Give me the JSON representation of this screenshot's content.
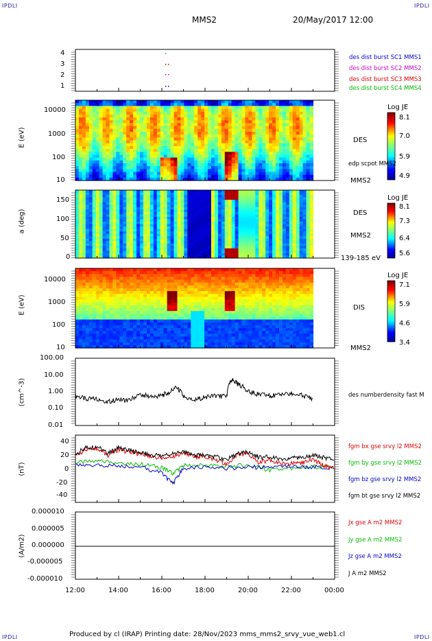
{
  "corner_label": "IPDLI",
  "header": {
    "spacecraft": "MMS2",
    "datetime": "20/May/2017 12:00"
  },
  "footer": {
    "text": "Produced by cl (IRAP)   Printing date: 28/Nov/2023   mms_mms2_srvy_vue_web1.cl"
  },
  "colors": {
    "blue": "#0000cc",
    "magenta": "#cc00cc",
    "red": "#dd0000",
    "green": "#00bb00",
    "black": "#000000"
  },
  "x_axis": {
    "ticks": [
      "12:00",
      "14:00",
      "16:00",
      "18:00",
      "20:00",
      "22:00",
      "00:00"
    ]
  },
  "panels": {
    "burst": {
      "yticks": [
        "4",
        "3",
        "2",
        "1"
      ],
      "legend": [
        {
          "text": "des dist burst SC1 MMS1",
          "color": "#0000cc"
        },
        {
          "text": "des dist burst SC2 MMS2",
          "color": "#cc00cc"
        },
        {
          "text": "des dist burst SC3 MMS3",
          "color": "#dd0000"
        },
        {
          "text": "des dist burst SC4 MMS4",
          "color": "#00bb00"
        }
      ]
    },
    "des_energy": {
      "ylabel": "E (eV)",
      "yticks": [
        "10000",
        "1000",
        "100",
        "10"
      ],
      "right_label": "DES",
      "overlay_label": "edp scpot MMS2",
      "bottom_label": "MMS2",
      "colorbar": {
        "title": "Log JE",
        "ticks": [
          "8.1",
          "7.0",
          "5.9",
          "4.9"
        ]
      }
    },
    "des_pitch": {
      "ylabel": "a (deg)",
      "yticks": [
        "150",
        "100",
        "50",
        "0"
      ],
      "right_label": "DES",
      "right_label2": "MMS2",
      "bottom_label": "139-185 eV",
      "colorbar": {
        "title": "Log JE",
        "ticks": [
          "8.1",
          "7.3",
          "6.4",
          "5.6"
        ]
      }
    },
    "dis_energy": {
      "ylabel": "E (eV)",
      "yticks": [
        "10000",
        "1000",
        "100",
        "10"
      ],
      "right_label": "DIS",
      "bottom_label": "MMS2",
      "colorbar": {
        "title": "Log JE",
        "ticks": [
          "7.1",
          "5.9",
          "4.6",
          "3.4"
        ]
      }
    },
    "density": {
      "ylabel": "(cm^-3)",
      "yticks": [
        "100.00",
        "10.00",
        "1.00",
        "0.10",
        "0.01"
      ],
      "legend": "des numberdensity fast M"
    },
    "bfield": {
      "ylabel": "(nT)",
      "yticks": [
        "40",
        "20",
        "0",
        "-20",
        "-40"
      ],
      "legend": [
        {
          "text": "fgm bx gse srvy l2 MMS2",
          "color": "#dd0000"
        },
        {
          "text": "fgm by gse srvy l2 MMS2",
          "color": "#00bb00"
        },
        {
          "text": "fgm bz gse srvy l2 MMS2",
          "color": "#0000cc"
        },
        {
          "text": "fgm bt gse srvy l2 MMS2",
          "color": "#000000"
        }
      ]
    },
    "current": {
      "ylabel": "(A/m2)",
      "yticks": [
        "0.000010",
        "0.000005",
        "0.000000",
        "-0.000005",
        "-0.000010"
      ],
      "legend": [
        {
          "text": "Jx gse A m2 MMS2",
          "color": "#dd0000"
        },
        {
          "text": "Jy gse A m2 MMS2",
          "color": "#00bb00"
        },
        {
          "text": "Jz gse A m2 MMS2",
          "color": "#0000cc"
        },
        {
          "text": "J A m2 MMS2",
          "color": "#000000"
        }
      ]
    }
  },
  "chart_data": {
    "type": "line",
    "x_range": [
      "12:00",
      "00:00"
    ],
    "data_end": "23:00",
    "series": [
      {
        "name": "des numberdensity fast M",
        "x": [
          "12:00",
          "12:30",
          "13:00",
          "13:30",
          "14:00",
          "14:30",
          "15:00",
          "15:30",
          "16:00",
          "16:20",
          "16:40",
          "17:00",
          "17:30",
          "18:00",
          "18:30",
          "19:00",
          "19:15",
          "19:30",
          "20:00",
          "20:30",
          "21:00",
          "21:30",
          "22:00",
          "22:30",
          "23:00"
        ],
        "y": [
          0.6,
          0.35,
          0.4,
          0.25,
          0.35,
          0.3,
          0.7,
          0.5,
          0.6,
          0.9,
          1.8,
          0.5,
          0.3,
          0.5,
          0.6,
          0.5,
          5.0,
          3.0,
          1.0,
          0.7,
          0.6,
          0.6,
          0.8,
          0.6,
          0.4
        ]
      },
      {
        "name": "fgm bt gse srvy l2 MMS2",
        "x": [
          "12:00",
          "12:30",
          "13:00",
          "13:30",
          "14:00",
          "14:30",
          "15:00",
          "15:30",
          "16:00",
          "16:30",
          "17:00",
          "17:30",
          "18:00",
          "18:30",
          "19:00",
          "19:30",
          "20:00",
          "20:30",
          "21:00",
          "21:30",
          "22:00",
          "22:30",
          "23:00",
          "23:30",
          "00:00"
        ],
        "y": [
          20,
          28,
          30,
          20,
          28,
          24,
          22,
          18,
          18,
          20,
          22,
          18,
          18,
          16,
          12,
          20,
          22,
          15,
          16,
          12,
          16,
          14,
          18,
          15,
          12
        ]
      },
      {
        "name": "fgm bx gse srvy l2 MMS2",
        "x": [
          "12:00",
          "12:30",
          "13:00",
          "13:30",
          "14:00",
          "14:30",
          "15:00",
          "15:30",
          "16:00",
          "16:30",
          "17:00",
          "17:30",
          "18:00",
          "18:30",
          "19:00",
          "19:30",
          "20:00",
          "20:30",
          "21:00",
          "21:30",
          "22:00",
          "22:30",
          "23:00",
          "23:30",
          "00:00"
        ],
        "y": [
          18,
          26,
          28,
          18,
          26,
          22,
          20,
          16,
          14,
          16,
          20,
          16,
          16,
          12,
          6,
          18,
          20,
          8,
          12,
          6,
          8,
          8,
          12,
          4,
          0
        ]
      },
      {
        "name": "fgm by gse srvy l2 MMS2",
        "x": [
          "12:00",
          "13:00",
          "14:00",
          "15:00",
          "16:00",
          "16:30",
          "17:00",
          "18:00",
          "19:00",
          "20:00",
          "21:00",
          "22:00",
          "23:00",
          "00:00"
        ],
        "y": [
          8,
          10,
          9,
          6,
          2,
          -6,
          4,
          5,
          3,
          5,
          -2,
          0,
          3,
          2
        ]
      },
      {
        "name": "fgm bz gse srvy l2 MMS2",
        "x": [
          "12:00",
          "13:00",
          "14:00",
          "15:00",
          "16:00",
          "16:30",
          "17:00",
          "18:00",
          "19:00",
          "20:00",
          "21:00",
          "22:00",
          "23:00",
          "00:00"
        ],
        "y": [
          4,
          5,
          4,
          3,
          -6,
          -20,
          0,
          2,
          1,
          2,
          2,
          3,
          2,
          1
        ]
      },
      {
        "name": "J A m2 MMS2",
        "x": [
          "12:00",
          "00:00"
        ],
        "y": [
          0.0,
          0.0
        ]
      }
    ],
    "axes": {
      "density": {
        "scale": "log",
        "ylim": [
          0.01,
          100
        ]
      },
      "bfield": {
        "ylim": [
          -45,
          45
        ]
      },
      "current": {
        "ylim": [
          -1e-05,
          1e-05
        ]
      },
      "energy": {
        "scale": "log",
        "ylim": [
          10,
          30000
        ]
      },
      "pitch": {
        "ylim": [
          0,
          180
        ]
      }
    }
  }
}
